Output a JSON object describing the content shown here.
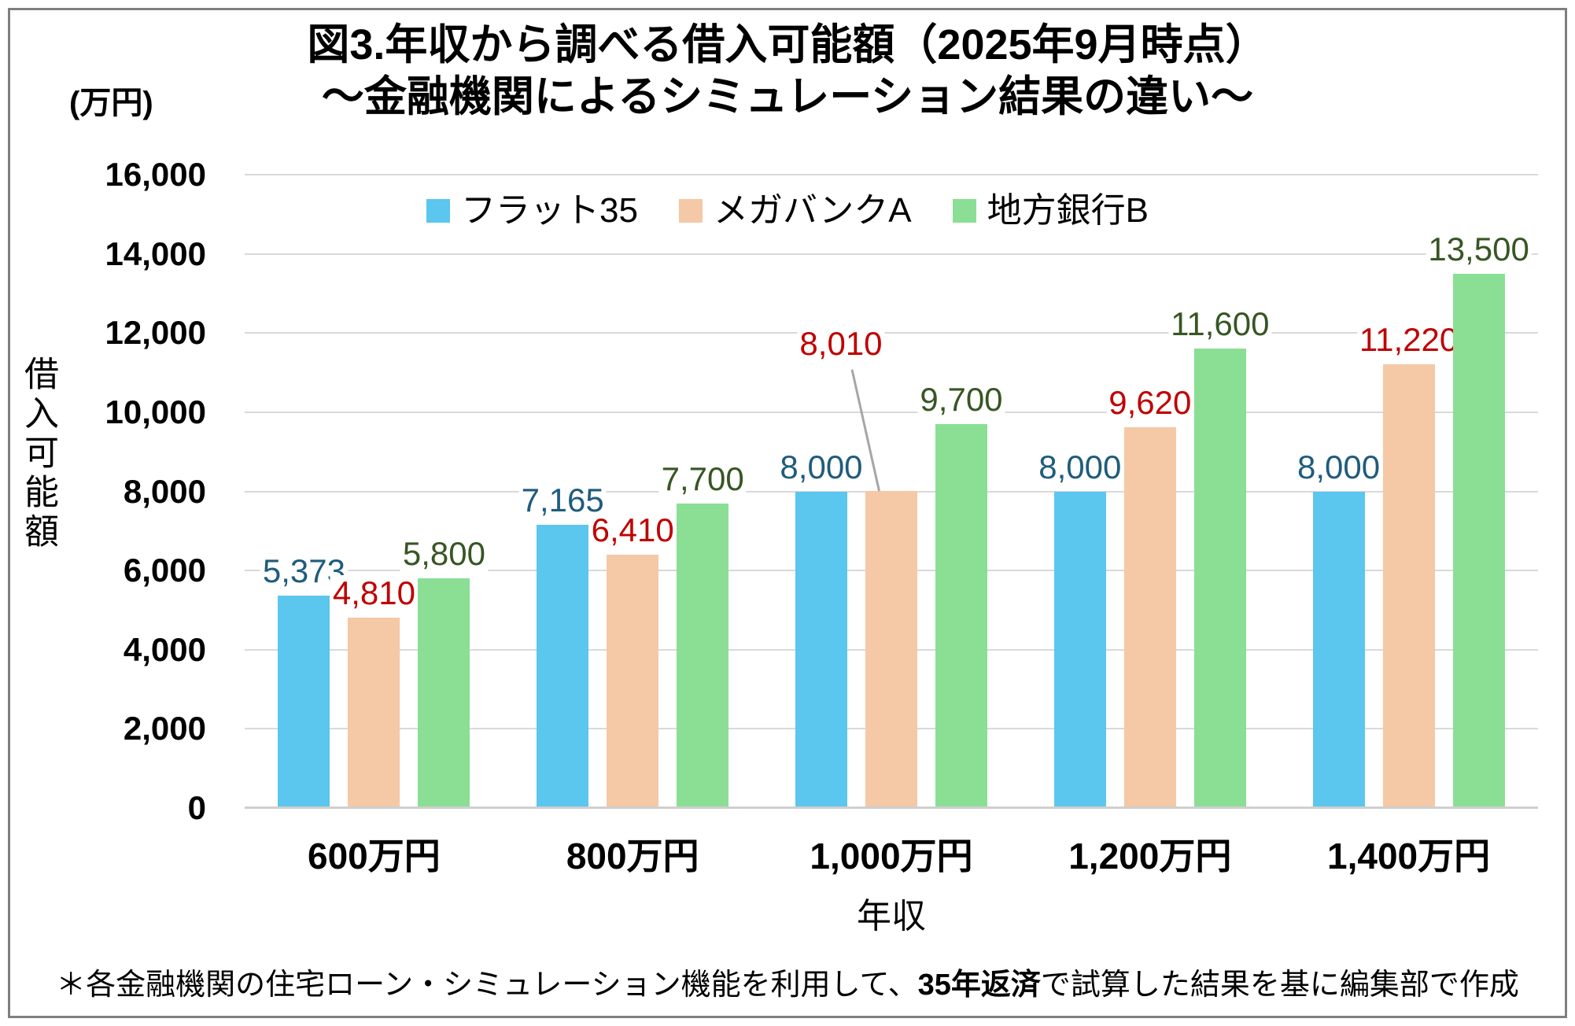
{
  "title": {
    "line1": "図3.年収から調べる借入可能額（2025年9月時点）",
    "line2": "～金融機関によるシミュレーション結果の違い～"
  },
  "y_unit_label": "(万円)",
  "y_axis_title": "借入可能額",
  "x_axis_title": "年収",
  "footnote": {
    "prefix": "＊各金融機関の住宅ローン・シミュレーション機能を利用して、",
    "bold": "35年返済",
    "suffix": "で試算した結果を基に編集部で作成"
  },
  "colors": {
    "frame_border": "#7f7f7f",
    "gridline": "#d9d9d9",
    "axis_baseline": "#cfcfcf",
    "leader_line": "#a6a6a6"
  },
  "chart_data": {
    "type": "bar",
    "title": "図3.年収から調べる借入可能額（2025年9月時点）～金融機関によるシミュレーション結果の違い～",
    "xlabel": "年収",
    "ylabel": "借入可能額",
    "y_unit": "万円",
    "ylim": [
      0,
      16000
    ],
    "ytick_step": 2000,
    "yticks": [
      "0",
      "2,000",
      "4,000",
      "6,000",
      "8,000",
      "10,000",
      "12,000",
      "14,000",
      "16,000"
    ],
    "grid": "horizontal",
    "legend_position": "top-center",
    "categories": [
      "600万円",
      "800万円",
      "1,000万円",
      "1,200万円",
      "1,400万円"
    ],
    "series": [
      {
        "name": "フラット35",
        "color": "#5bc6ee",
        "label_color": "#1f5c7d",
        "values": [
          5373,
          7165,
          8000,
          8000,
          8000
        ],
        "labels": [
          "5,373",
          "7,165",
          "8,000",
          "8,000",
          "8,000"
        ]
      },
      {
        "name": "メガバンクA",
        "color": "#f5c8a6",
        "label_color": "#c00000",
        "values": [
          4810,
          6410,
          8010,
          9620,
          11220
        ],
        "labels": [
          "4,810",
          "6,410",
          "8,010",
          "9,620",
          "11,220"
        ]
      },
      {
        "name": "地方銀行B",
        "color": "#8adf95",
        "label_color": "#375623",
        "values": [
          5800,
          7700,
          9700,
          11600,
          13500
        ],
        "labels": [
          "5,800",
          "7,700",
          "9,700",
          "11,600",
          "13,500"
        ]
      }
    ],
    "callout": {
      "series_index": 1,
      "point_index": 2,
      "label_dx": -64,
      "label_lift": 164
    }
  }
}
